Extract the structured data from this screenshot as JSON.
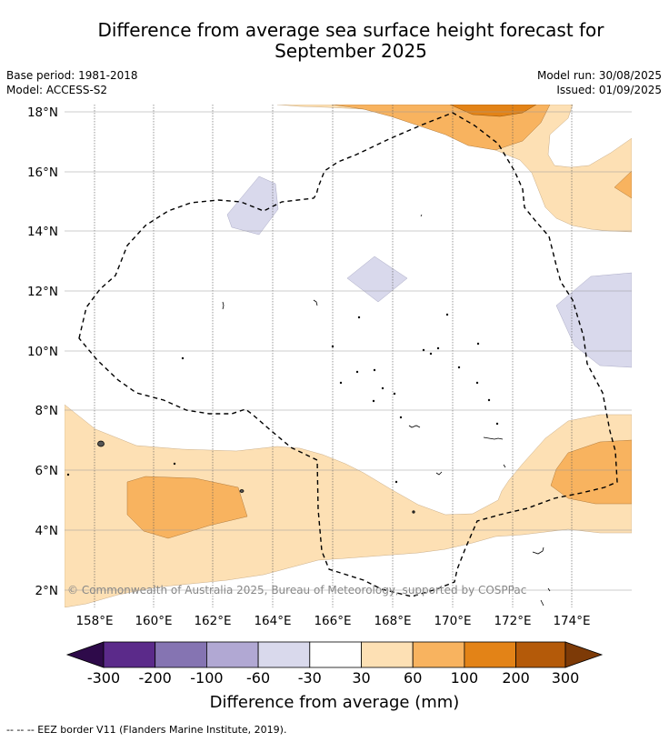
{
  "title": {
    "line1": "Difference from average sea surface height forecast for",
    "line2": "September 2025"
  },
  "meta": {
    "base_period": "Base period: 1981-2018",
    "model": "Model: ACCESS-S2",
    "model_run": "Model run: 30/08/2025",
    "issued": "Issued: 01/09/2025"
  },
  "map": {
    "x_ticks": [
      "158°E",
      "160°E",
      "162°E",
      "164°E",
      "166°E",
      "168°E",
      "170°E",
      "172°E",
      "174°E"
    ],
    "y_ticks": [
      "18°N",
      "16°N",
      "14°N",
      "12°N",
      "10°N",
      "8°N",
      "6°N",
      "4°N",
      "2°N"
    ],
    "copyright": "© Commonwealth of Australia 2025, Bureau of Meteorology, supported by COSPPac"
  },
  "colorbar": {
    "title": "Difference from average (mm)",
    "tick_labels": [
      "-300",
      "-200",
      "-100",
      "-60",
      "-30",
      "30",
      "60",
      "100",
      "200",
      "300"
    ],
    "colors": [
      "#2e0a4a",
      "#5b2a8a",
      "#8574b2",
      "#b1a8d3",
      "#d9d9ec",
      "#ffffff",
      "#fde0b4",
      "#f8b35f",
      "#e38317",
      "#b45a09",
      "#7d3a07"
    ]
  },
  "colors": {
    "band_30_60": "#fde0b4",
    "band_60_100": "#f8b35f",
    "band_100_200": "#e38317",
    "band_neg": "#d9d9ec",
    "eez_line": "#000000"
  },
  "footnote": "--  --  -- EEZ border V11 (Flanders Marine Institute, 2019)."
}
